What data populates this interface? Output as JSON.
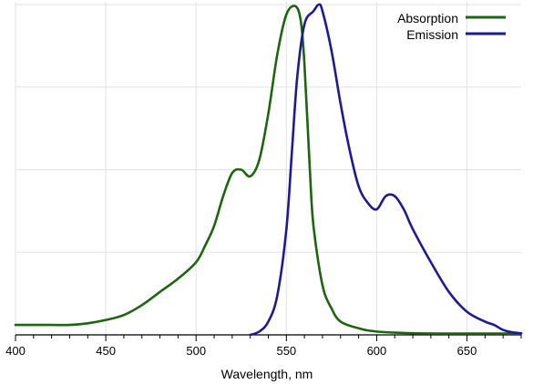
{
  "chart_data": {
    "type": "line",
    "title": "",
    "xlabel": "Wavelength, nm",
    "ylabel": "",
    "xlim": [
      400,
      680
    ],
    "ylim": [
      0,
      1.0
    ],
    "x_ticks": [
      400,
      450,
      500,
      550,
      600,
      650
    ],
    "x_tick_labels": [
      "400",
      "450",
      "500",
      "550",
      "600",
      "650"
    ],
    "y_grid": [
      0.25,
      0.5,
      0.75,
      1.0
    ],
    "grid": true,
    "legend_position": "top-right",
    "series": [
      {
        "name": "Absorption",
        "color": "#1f6410",
        "x": [
          400,
          410,
          420,
          430,
          440,
          450,
          460,
          470,
          480,
          490,
          500,
          505,
          510,
          515,
          520,
          525,
          530,
          535,
          540,
          545,
          550,
          555,
          558,
          560,
          563,
          565,
          570,
          575,
          580,
          590,
          600,
          620,
          640,
          660,
          680
        ],
        "y": [
          0.03,
          0.03,
          0.03,
          0.03,
          0.035,
          0.045,
          0.06,
          0.09,
          0.13,
          0.17,
          0.22,
          0.27,
          0.33,
          0.42,
          0.49,
          0.5,
          0.48,
          0.53,
          0.67,
          0.85,
          0.97,
          0.995,
          0.95,
          0.82,
          0.5,
          0.33,
          0.15,
          0.08,
          0.04,
          0.02,
          0.01,
          0.005,
          0.004,
          0.004,
          0.004
        ]
      },
      {
        "name": "Emission",
        "color": "#1e1a96",
        "x": [
          530,
          535,
          540,
          545,
          550,
          553,
          556,
          560,
          565,
          568,
          570,
          575,
          580,
          585,
          590,
          595,
          600,
          605,
          610,
          615,
          620,
          630,
          640,
          650,
          660,
          665,
          670,
          675,
          680
        ],
        "y": [
          0.0,
          0.01,
          0.04,
          0.12,
          0.32,
          0.55,
          0.78,
          0.94,
          0.98,
          1.0,
          0.98,
          0.86,
          0.7,
          0.56,
          0.45,
          0.4,
          0.38,
          0.42,
          0.42,
          0.38,
          0.32,
          0.22,
          0.13,
          0.07,
          0.04,
          0.03,
          0.015,
          0.008,
          0.005
        ]
      }
    ]
  }
}
